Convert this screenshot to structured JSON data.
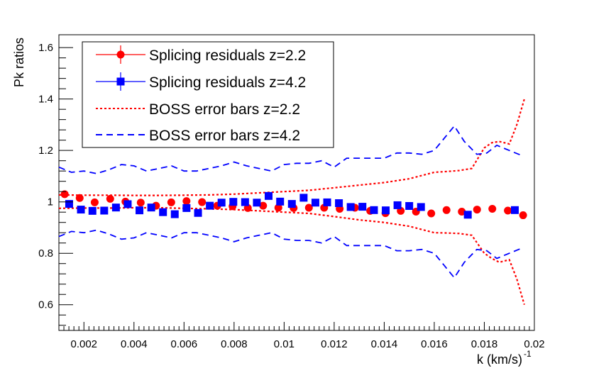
{
  "chart_data": {
    "type": "scatter",
    "title": "",
    "xlabel": "k  (km/s)",
    "xlabel_exponent": "-1",
    "ylabel": "Pk ratios",
    "xlim": [
      0.001,
      0.02
    ],
    "ylim": [
      0.5,
      1.65
    ],
    "x_ticks": [
      0.002,
      0.004,
      0.006,
      0.008,
      0.01,
      0.012,
      0.014,
      0.016,
      0.018,
      0.02
    ],
    "x_tick_labels": [
      "0.002",
      "0.004",
      "0.006",
      "0.008",
      "0.01",
      "0.012",
      "0.014",
      "0.016",
      "0.018",
      "0.02"
    ],
    "y_ticks": [
      0.6,
      0.8,
      1.0,
      1.2,
      1.4,
      1.6
    ],
    "y_tick_labels": [
      "0.6",
      "0.8",
      "1",
      "1.2",
      "1.4",
      "1.6"
    ],
    "legend_position": "top-left",
    "series": [
      {
        "name": "Splicing residuals z=2.2",
        "kind": "points",
        "marker": "circle",
        "color": "#ff0000",
        "x": [
          0.00123,
          0.00183,
          0.00243,
          0.00305,
          0.00366,
          0.00427,
          0.00488,
          0.00549,
          0.0061,
          0.00672,
          0.00733,
          0.00794,
          0.00855,
          0.00916,
          0.00977,
          0.01038,
          0.01099,
          0.0116,
          0.01222,
          0.01283,
          0.01344,
          0.01405,
          0.01466,
          0.01527,
          0.01588,
          0.01649,
          0.0171,
          0.01771,
          0.01832,
          0.01894,
          0.01955
        ],
        "y": [
          1.03,
          1.015,
          0.998,
          1.012,
          1.001,
          0.997,
          0.985,
          0.998,
          1.003,
          0.999,
          0.985,
          0.983,
          0.976,
          0.985,
          0.977,
          0.976,
          0.977,
          0.977,
          0.973,
          0.977,
          0.965,
          0.956,
          0.965,
          0.962,
          0.955,
          0.968,
          0.962,
          0.97,
          0.973,
          0.966,
          0.948
        ]
      },
      {
        "name": "Splicing residuals z=4.2",
        "kind": "points",
        "marker": "square",
        "color": "#0000ff",
        "x": [
          0.00141,
          0.00188,
          0.00234,
          0.00281,
          0.00328,
          0.00375,
          0.00422,
          0.00469,
          0.00516,
          0.00563,
          0.0061,
          0.00656,
          0.00703,
          0.0075,
          0.00797,
          0.00844,
          0.00891,
          0.00938,
          0.00984,
          0.01031,
          0.01078,
          0.01125,
          0.01172,
          0.01219,
          0.01266,
          0.01313,
          0.01359,
          0.01406,
          0.01453,
          0.015,
          0.01547,
          0.01734,
          0.01922
        ],
        "y": [
          0.992,
          0.97,
          0.965,
          0.966,
          0.978,
          0.991,
          0.967,
          0.978,
          0.96,
          0.952,
          0.976,
          0.957,
          0.985,
          0.997,
          1.0,
          0.999,
          0.997,
          1.023,
          1.001,
          0.992,
          1.016,
          0.997,
          0.998,
          0.995,
          0.98,
          0.981,
          0.968,
          0.967,
          0.987,
          0.984,
          0.98,
          0.95,
          0.968
        ]
      },
      {
        "name": "BOSS error bars z=2.2",
        "kind": "band",
        "linestyle": "dotted",
        "color": "#ff0000",
        "x": [
          0.001,
          0.002,
          0.003,
          0.004,
          0.005,
          0.006,
          0.007,
          0.008,
          0.009,
          0.01,
          0.011,
          0.012,
          0.013,
          0.014,
          0.015,
          0.016,
          0.0165,
          0.017,
          0.0175,
          0.018,
          0.0183,
          0.0186,
          0.019,
          0.0193,
          0.0196
        ],
        "upper": [
          1.027,
          1.026,
          1.026,
          1.025,
          1.025,
          1.026,
          1.027,
          1.03,
          1.035,
          1.04,
          1.045,
          1.055,
          1.065,
          1.075,
          1.09,
          1.115,
          1.118,
          1.122,
          1.13,
          1.21,
          1.23,
          1.235,
          1.225,
          1.3,
          1.4
        ],
        "lower": [
          0.975,
          0.976,
          0.976,
          0.977,
          0.977,
          0.975,
          0.973,
          0.97,
          0.965,
          0.96,
          0.955,
          0.943,
          0.93,
          0.92,
          0.905,
          0.88,
          0.879,
          0.877,
          0.87,
          0.8,
          0.78,
          0.765,
          0.775,
          0.7,
          0.6
        ]
      },
      {
        "name": "BOSS error bars z=4.2",
        "kind": "band",
        "linestyle": "dashed",
        "color": "#0000ff",
        "x": [
          0.001,
          0.0015,
          0.002,
          0.0025,
          0.003,
          0.0035,
          0.004,
          0.0045,
          0.005,
          0.0055,
          0.006,
          0.0065,
          0.007,
          0.0075,
          0.008,
          0.0085,
          0.009,
          0.0095,
          0.01,
          0.0105,
          0.011,
          0.0115,
          0.012,
          0.0125,
          0.013,
          0.0135,
          0.014,
          0.0145,
          0.015,
          0.0155,
          0.016,
          0.0168,
          0.0172,
          0.0177,
          0.0181,
          0.0185,
          0.019,
          0.0195
        ],
        "upper": [
          1.135,
          1.115,
          1.12,
          1.11,
          1.125,
          1.145,
          1.14,
          1.12,
          1.13,
          1.14,
          1.12,
          1.12,
          1.13,
          1.14,
          1.155,
          1.14,
          1.13,
          1.12,
          1.145,
          1.15,
          1.15,
          1.16,
          1.135,
          1.17,
          1.17,
          1.17,
          1.17,
          1.19,
          1.19,
          1.185,
          1.2,
          1.295,
          1.235,
          1.185,
          1.19,
          1.22,
          1.2,
          1.18
        ],
        "lower": [
          0.865,
          0.885,
          0.88,
          0.89,
          0.875,
          0.855,
          0.86,
          0.88,
          0.87,
          0.86,
          0.88,
          0.88,
          0.87,
          0.86,
          0.845,
          0.86,
          0.87,
          0.88,
          0.855,
          0.85,
          0.85,
          0.84,
          0.865,
          0.83,
          0.83,
          0.83,
          0.83,
          0.81,
          0.81,
          0.815,
          0.8,
          0.705,
          0.765,
          0.815,
          0.81,
          0.78,
          0.8,
          0.82
        ]
      }
    ]
  }
}
